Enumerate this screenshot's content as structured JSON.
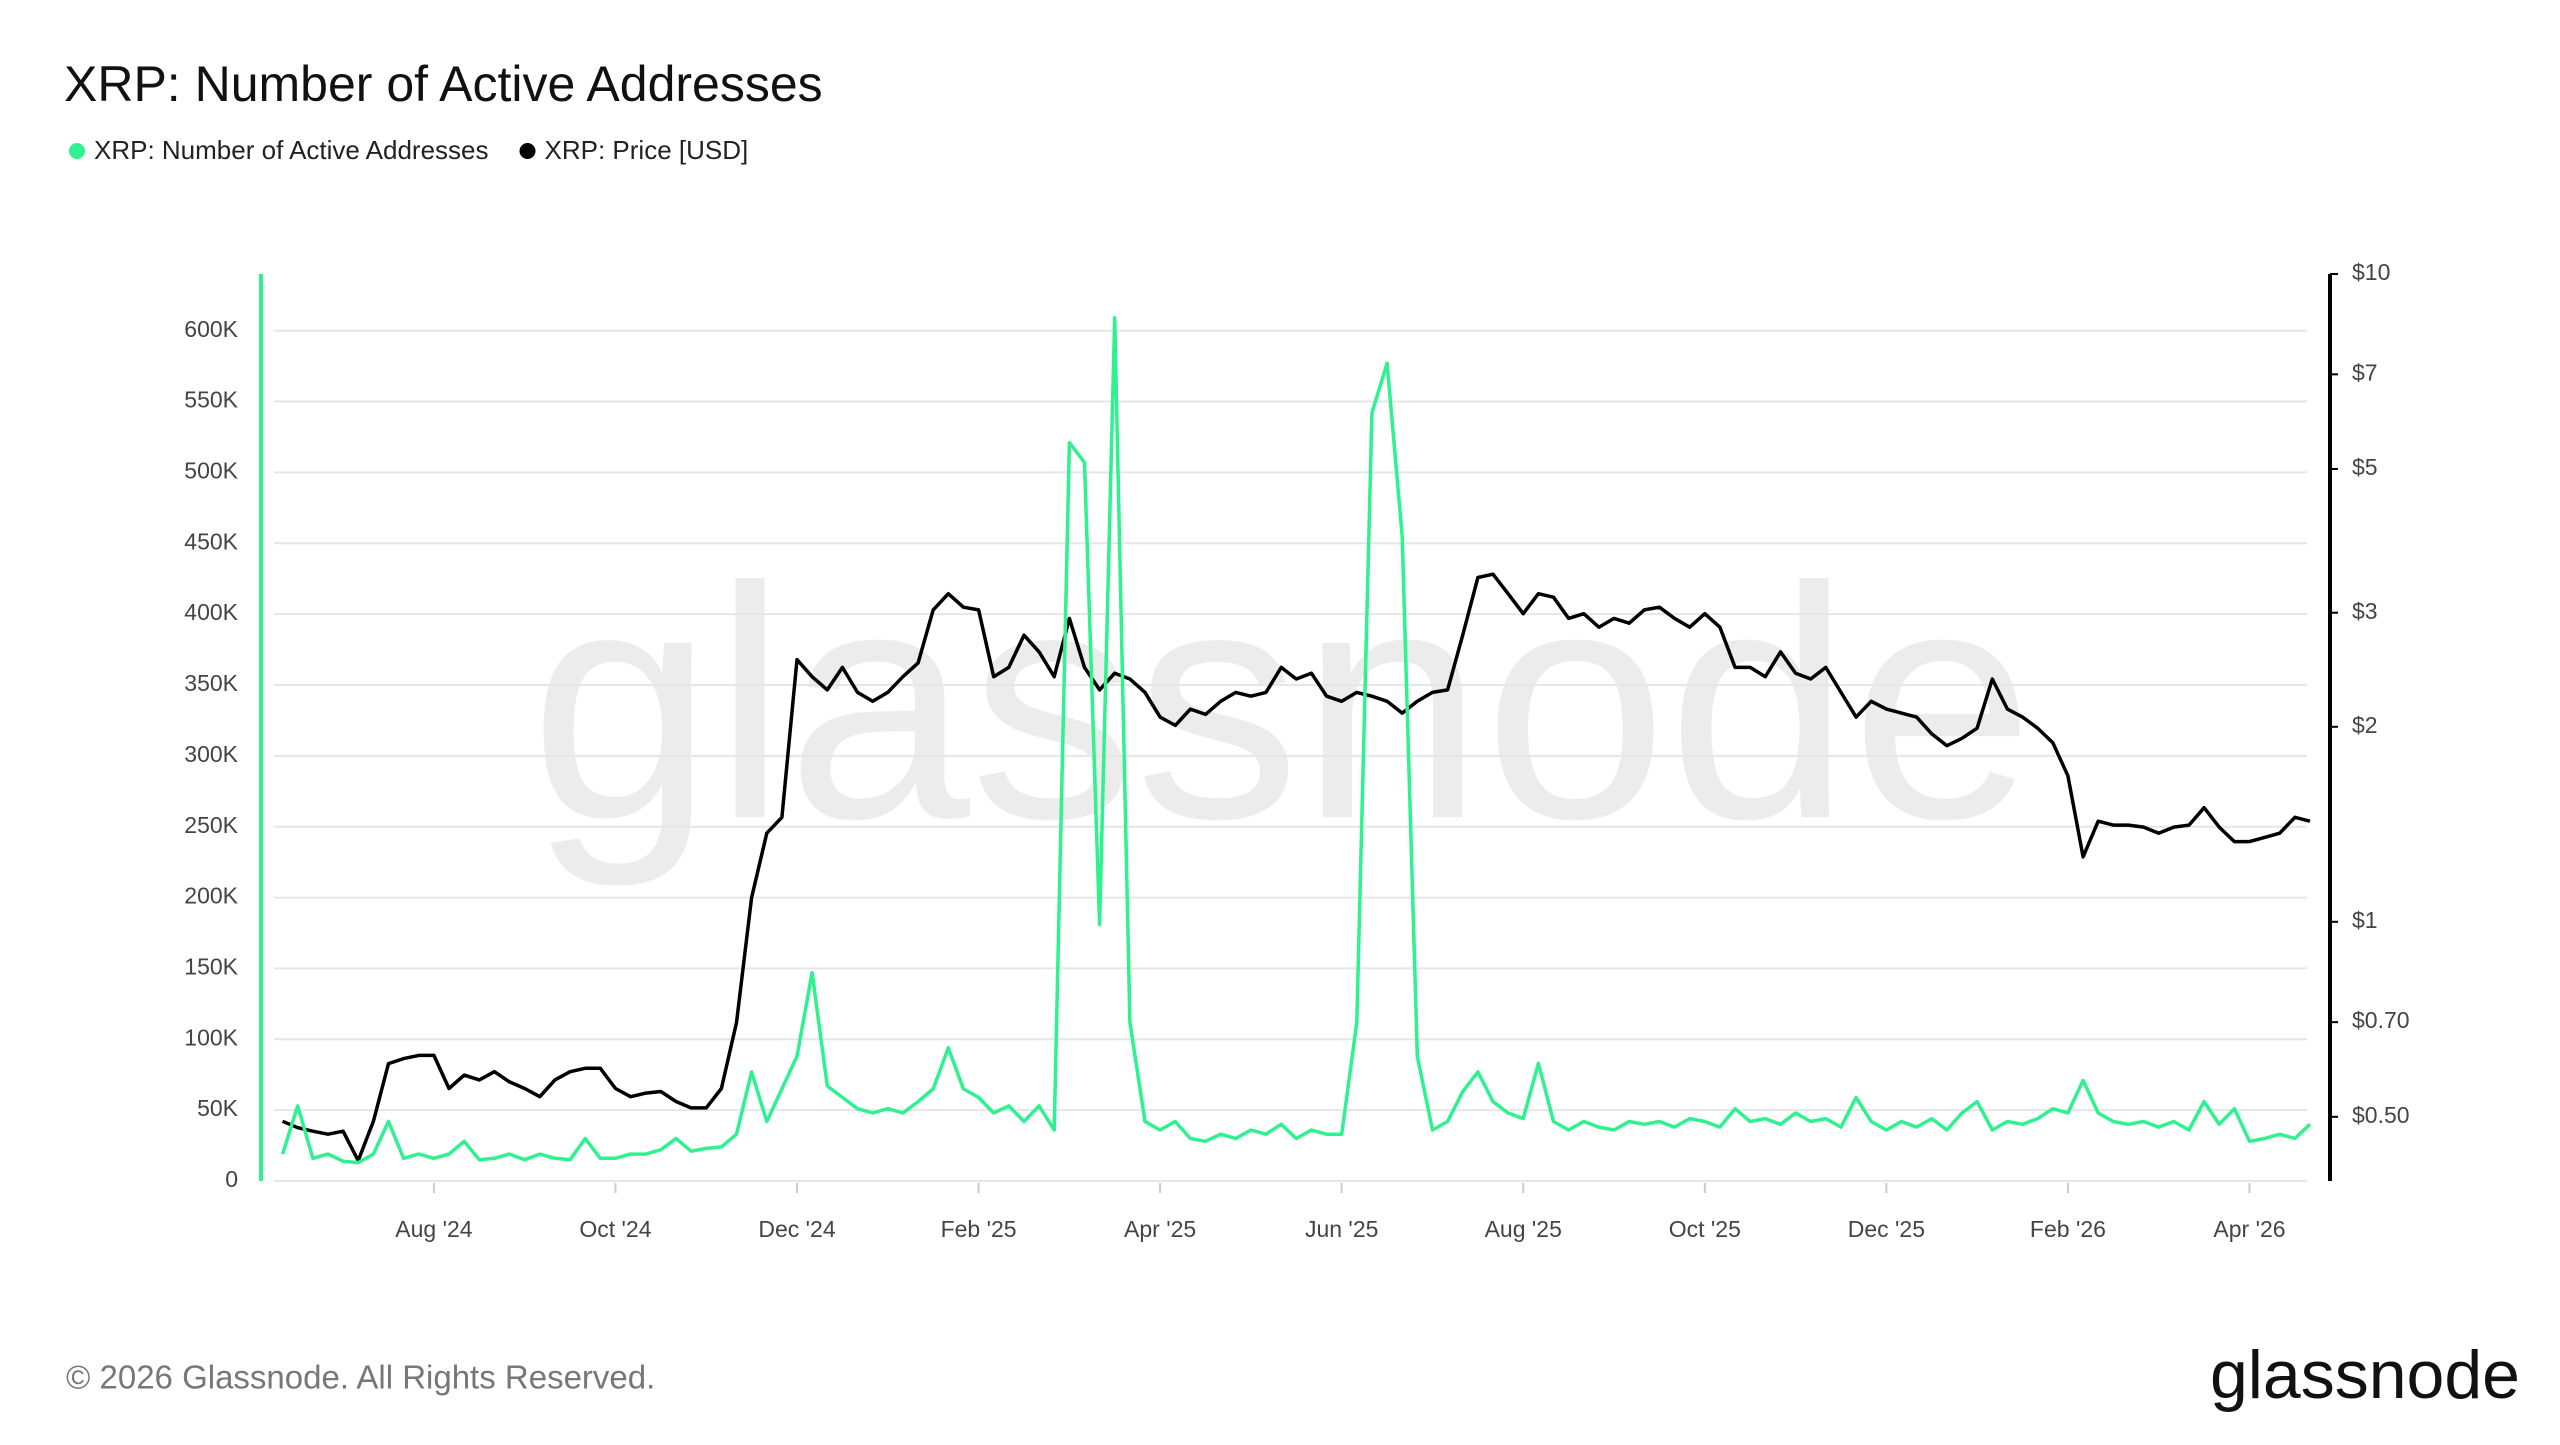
{
  "chart_data": {
    "type": "line",
    "title": "XRP: Number of Active Addresses",
    "watermark": "glassnode",
    "footer": "© 2026 Glassnode. All Rights Reserved.",
    "brand": "glassnode",
    "legend": "top-left",
    "grid": true,
    "y2log": true,
    "categories": [
      null,
      null,
      null,
      null,
      null,
      null,
      null,
      null,
      null,
      null,
      "Aug '24",
      null,
      null,
      null,
      null,
      null,
      null,
      null,
      null,
      null,
      null,
      null,
      "Oct '24",
      null,
      null,
      null,
      null,
      null,
      null,
      null,
      null,
      null,
      null,
      null,
      "Dec '24",
      null,
      null,
      null,
      null,
      null,
      null,
      null,
      null,
      null,
      null,
      null,
      "Feb '25",
      null,
      null,
      null,
      null,
      null,
      null,
      null,
      null,
      null,
      null,
      null,
      "Apr '25",
      null,
      null,
      null,
      null,
      null,
      null,
      null,
      null,
      null,
      null,
      null,
      "Jun '25",
      null,
      null,
      null,
      null,
      null,
      null,
      null,
      null,
      null,
      null,
      null,
      "Aug '25",
      null,
      null,
      null,
      null,
      null,
      null,
      null,
      null,
      null,
      null,
      null,
      "Oct '25",
      null,
      null,
      null,
      null,
      null,
      null,
      null,
      null,
      null,
      null,
      null,
      "Dec '25",
      null,
      null,
      null,
      null,
      null,
      null,
      null,
      null,
      null,
      null,
      null,
      "Feb '26",
      null,
      null,
      null,
      null,
      null,
      null,
      null,
      null,
      null,
      null,
      null,
      "Apr '26",
      null,
      null,
      null,
      null
    ],
    "ylim": [
      0,
      640000
    ],
    "yticks": [
      {
        "value": 0,
        "label": "0"
      },
      {
        "value": 50000,
        "label": "50K"
      },
      {
        "value": 100000,
        "label": "100K"
      },
      {
        "value": 150000,
        "label": "150K"
      },
      {
        "value": 200000,
        "label": "200K"
      },
      {
        "value": 250000,
        "label": "250K"
      },
      {
        "value": 300000,
        "label": "300K"
      },
      {
        "value": 350000,
        "label": "350K"
      },
      {
        "value": 400000,
        "label": "400K"
      },
      {
        "value": 450000,
        "label": "450K"
      },
      {
        "value": 500000,
        "label": "500K"
      },
      {
        "value": 550000,
        "label": "550K"
      },
      {
        "value": 600000,
        "label": "600K"
      }
    ],
    "y2lim": [
      0.398,
      10
    ],
    "y2ticks": [
      {
        "value": 0.5,
        "label": "$0.50"
      },
      {
        "value": 0.7,
        "label": "$0.70"
      },
      {
        "value": 1,
        "label": "$1"
      },
      {
        "value": 2,
        "label": "$2"
      },
      {
        "value": 3,
        "label": "$3"
      },
      {
        "value": 5,
        "label": "$5"
      },
      {
        "value": 7,
        "label": "$7"
      },
      {
        "value": 10,
        "label": "$10"
      }
    ],
    "series": [
      {
        "name": "XRP: Number of Active Addresses",
        "color": "#2ef28f",
        "axis": "y",
        "values": [
          19000,
          53000,
          16000,
          19000,
          14000,
          13000,
          19000,
          42000,
          16000,
          19000,
          16000,
          19000,
          28000,
          15000,
          16000,
          19000,
          15000,
          19000,
          16000,
          15000,
          30000,
          16000,
          16000,
          19000,
          19000,
          22000,
          30000,
          21000,
          23000,
          24000,
          33000,
          77000,
          42000,
          65000,
          88000,
          147000,
          67000,
          59000,
          51000,
          48000,
          51000,
          48000,
          56000,
          65000,
          94000,
          65000,
          59000,
          48000,
          53000,
          42000,
          53000,
          36000,
          521000,
          507000,
          181000,
          609000,
          112000,
          42000,
          36000,
          42000,
          30000,
          28000,
          33000,
          30000,
          36000,
          33000,
          40000,
          30000,
          36000,
          33000,
          33000,
          112000,
          542000,
          577000,
          455000,
          88000,
          36000,
          42000,
          63000,
          77000,
          56000,
          48000,
          44000,
          83000,
          42000,
          36000,
          42000,
          38000,
          36000,
          42000,
          40000,
          42000,
          38000,
          44000,
          42000,
          38000,
          51000,
          42000,
          44000,
          40000,
          48000,
          42000,
          44000,
          38000,
          59000,
          42000,
          36000,
          42000,
          38000,
          44000,
          36000,
          48000,
          56000,
          36000,
          42000,
          40000,
          44000,
          51000,
          48000,
          71000,
          48000,
          42000,
          40000,
          42000,
          38000,
          42000,
          36000,
          56000,
          40000,
          51000,
          28000,
          30000,
          33000,
          30000,
          40000
        ]
      },
      {
        "name": "XRP: Price [USD]",
        "color": "#000000",
        "axis": "y2",
        "values": [
          0.492,
          0.481,
          0.475,
          0.47,
          0.475,
          0.428,
          0.492,
          0.604,
          0.615,
          0.622,
          0.622,
          0.553,
          0.58,
          0.57,
          0.587,
          0.566,
          0.553,
          0.537,
          0.57,
          0.587,
          0.594,
          0.594,
          0.553,
          0.537,
          0.544,
          0.547,
          0.528,
          0.516,
          0.516,
          0.553,
          0.699,
          1.09,
          1.37,
          1.45,
          2.54,
          2.39,
          2.28,
          2.47,
          2.26,
          2.19,
          2.26,
          2.39,
          2.51,
          3.03,
          3.21,
          3.06,
          3.03,
          2.39,
          2.47,
          2.77,
          2.61,
          2.39,
          2.94,
          2.47,
          2.28,
          2.42,
          2.37,
          2.26,
          2.07,
          2.01,
          2.13,
          2.09,
          2.19,
          2.26,
          2.23,
          2.26,
          2.47,
          2.37,
          2.42,
          2.23,
          2.19,
          2.26,
          2.23,
          2.19,
          2.1,
          2.19,
          2.26,
          2.28,
          2.77,
          3.4,
          3.44,
          3.21,
          2.99,
          3.21,
          3.17,
          2.94,
          2.99,
          2.85,
          2.94,
          2.89,
          3.03,
          3.06,
          2.94,
          2.85,
          2.99,
          2.85,
          2.47,
          2.47,
          2.39,
          2.61,
          2.42,
          2.37,
          2.47,
          2.26,
          2.07,
          2.19,
          2.13,
          2.1,
          2.07,
          1.95,
          1.87,
          1.92,
          1.99,
          2.37,
          2.13,
          2.07,
          1.99,
          1.89,
          1.68,
          1.26,
          1.43,
          1.41,
          1.41,
          1.4,
          1.37,
          1.4,
          1.41,
          1.5,
          1.4,
          1.33,
          1.33,
          1.35,
          1.37,
          1.45,
          1.43
        ]
      }
    ]
  }
}
